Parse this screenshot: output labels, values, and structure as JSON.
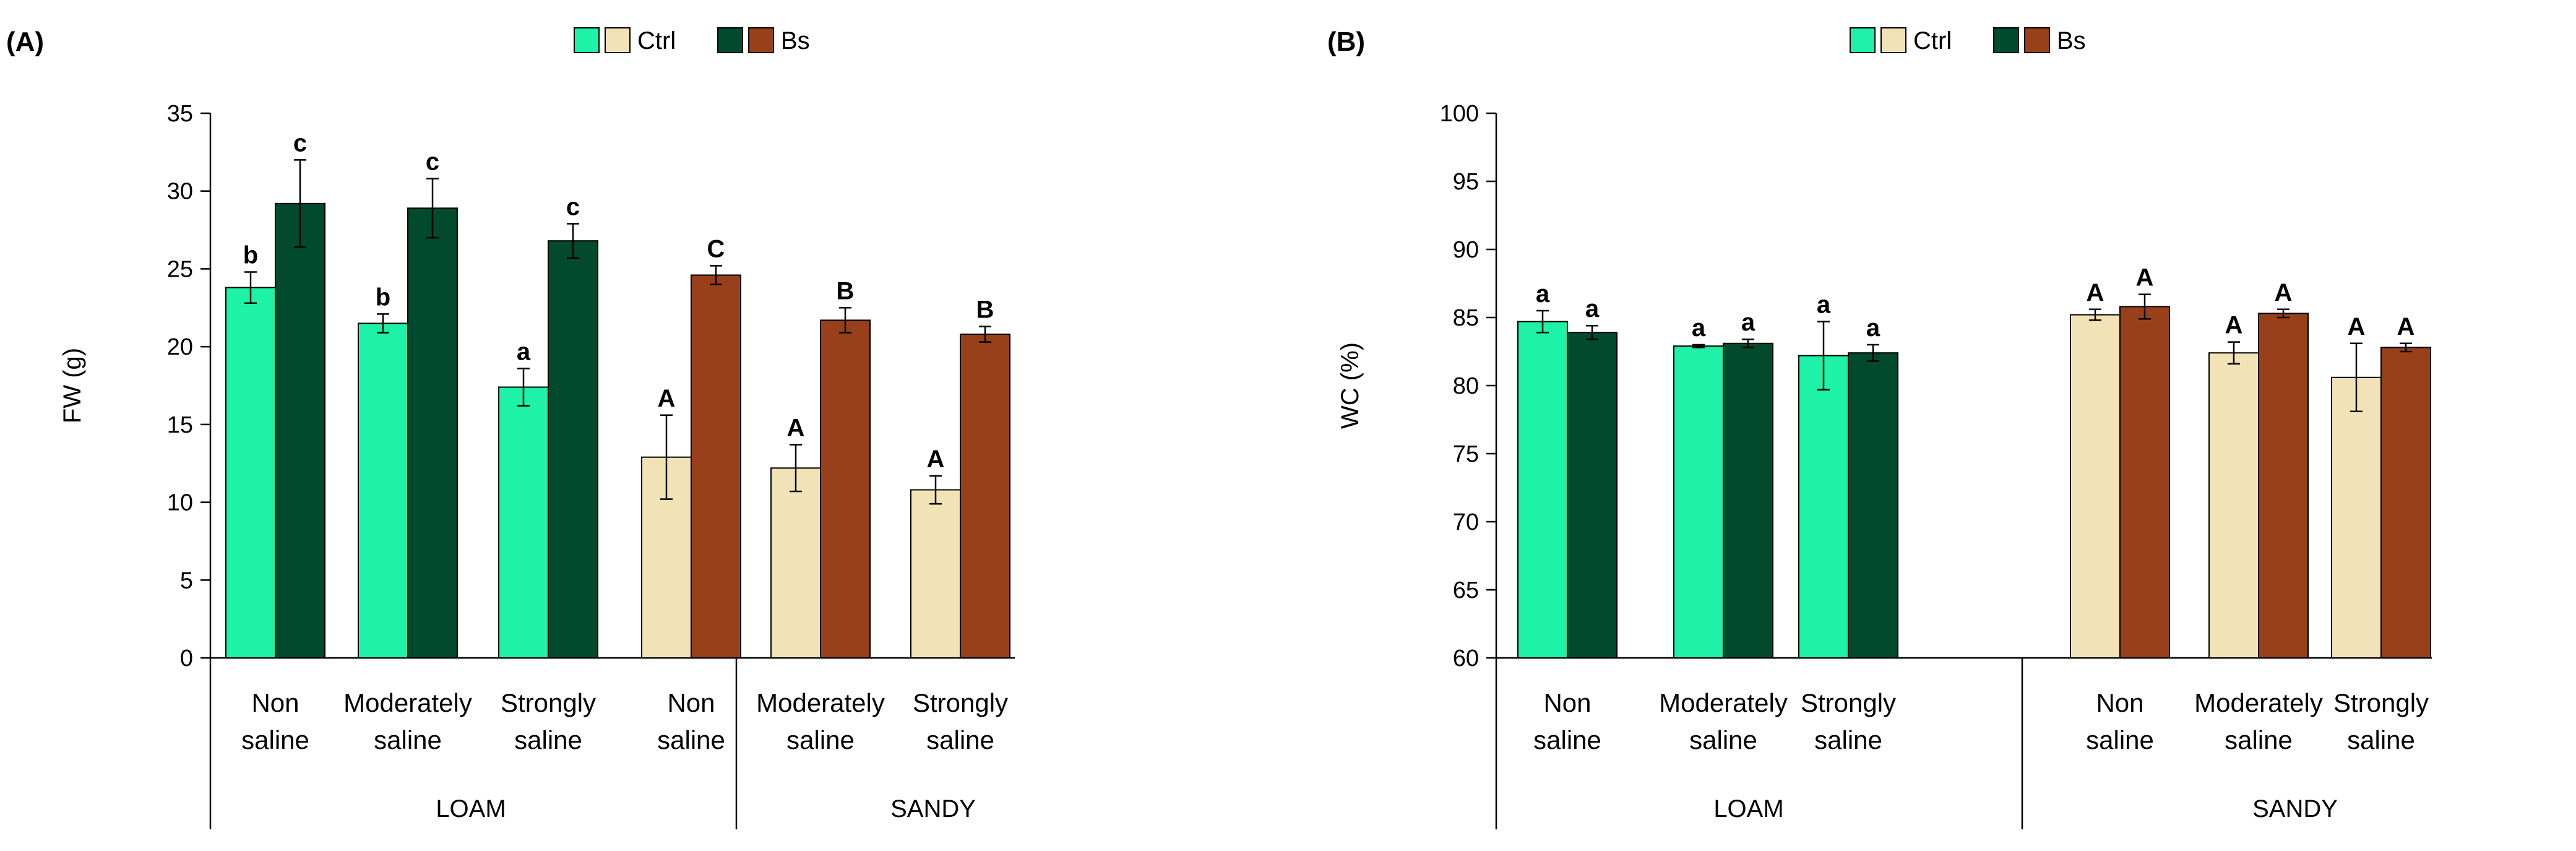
{
  "figure": {
    "legend": {
      "entries": [
        "Ctrl",
        "Bs"
      ]
    },
    "colors": {
      "loam_ctrl": "#1ef2a8",
      "loam_bs": "#014a2d",
      "sandy_ctrl": "#f2e3b6",
      "sandy_bs": "#97401a",
      "error_bar": "#000000",
      "axis": "#000000"
    }
  },
  "chart_data": [
    {
      "type": "bar",
      "panel_label": "(A)",
      "ylabel": "FW (g)",
      "xlabel": "",
      "ylim": [
        0,
        35
      ],
      "yticks": [
        0,
        5,
        10,
        15,
        20,
        25,
        30,
        35
      ],
      "grid": false,
      "legend_position": "top-center",
      "categories": [
        [
          "Non",
          "saline"
        ],
        [
          "Moderately",
          "saline"
        ],
        [
          "Strongly",
          "saline"
        ],
        [
          "Non",
          "saline"
        ],
        [
          "Moderately",
          "saline"
        ],
        [
          "Strongly",
          "saline"
        ]
      ],
      "groups": [
        {
          "label": "LOAM",
          "category_indices": [
            0,
            1,
            2
          ]
        },
        {
          "label": "SANDY",
          "category_indices": [
            3,
            4,
            5
          ]
        }
      ],
      "series": [
        {
          "name": "Ctrl",
          "values": [
            23.8,
            21.5,
            17.4,
            12.9,
            12.2,
            10.8
          ],
          "errors": [
            1.0,
            0.6,
            1.2,
            2.7,
            1.5,
            0.9
          ],
          "letters": [
            "b",
            "b",
            "a",
            "A",
            "A",
            "A"
          ]
        },
        {
          "name": "Bs",
          "values": [
            29.2,
            28.9,
            26.8,
            24.6,
            21.7,
            20.8
          ],
          "errors": [
            2.8,
            1.9,
            1.1,
            0.6,
            0.8,
            0.5
          ],
          "letters": [
            "c",
            "c",
            "c",
            "C",
            "B",
            "B"
          ]
        }
      ]
    },
    {
      "type": "bar",
      "panel_label": "(B)",
      "ylabel": "WC (%)",
      "xlabel": "",
      "ylim": [
        60,
        100
      ],
      "yticks": [
        60,
        65,
        70,
        75,
        80,
        85,
        90,
        95,
        100
      ],
      "grid": false,
      "legend_position": "top-center",
      "categories": [
        [
          "Non",
          "saline"
        ],
        [
          "Moderately",
          "saline"
        ],
        [
          "Strongly",
          "saline"
        ],
        [
          "Non",
          "saline"
        ],
        [
          "Moderately",
          "saline"
        ],
        [
          "Strongly",
          "saline"
        ]
      ],
      "groups": [
        {
          "label": "LOAM",
          "category_indices": [
            0,
            1,
            2
          ]
        },
        {
          "label": "SANDY",
          "category_indices": [
            3,
            4,
            5
          ]
        }
      ],
      "series": [
        {
          "name": "Ctrl",
          "values": [
            84.7,
            82.9,
            82.2,
            85.2,
            82.4,
            80.6
          ],
          "errors": [
            0.8,
            0.1,
            2.5,
            0.4,
            0.8,
            2.5
          ],
          "letters": [
            "a",
            "a",
            "a",
            "A",
            "A",
            "A"
          ]
        },
        {
          "name": "Bs",
          "values": [
            83.9,
            83.1,
            82.4,
            85.8,
            85.3,
            82.8
          ],
          "errors": [
            0.5,
            0.3,
            0.6,
            0.9,
            0.3,
            0.3
          ],
          "letters": [
            "a",
            "a",
            "a",
            "A",
            "A",
            "A"
          ]
        }
      ]
    }
  ]
}
